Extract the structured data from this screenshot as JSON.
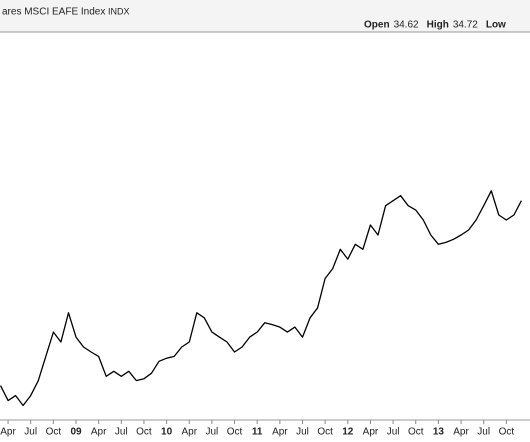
{
  "chart_data": {
    "type": "line",
    "title": "ares MSCI EAFE Index",
    "symbol": "INDX",
    "quote": [
      {
        "label": "Open",
        "value": 34.62
      },
      {
        "label": "High",
        "value": 34.72
      },
      {
        "label": "Low",
        "value": null
      }
    ],
    "categories": [
      null,
      "Apr",
      null,
      null,
      "Jul",
      null,
      null,
      "Oct",
      null,
      null,
      "09",
      null,
      null,
      "Apr",
      null,
      null,
      "Jul",
      null,
      null,
      "Oct",
      null,
      null,
      "10",
      null,
      null,
      "Apr",
      null,
      null,
      "Jul",
      null,
      null,
      "Oct",
      null,
      null,
      "11",
      null,
      null,
      "Apr",
      null,
      null,
      "Jul",
      null,
      null,
      "Oct",
      null,
      null,
      "12",
      null,
      null,
      "Apr",
      null,
      null,
      "Jul",
      null,
      null,
      "Oct",
      null,
      null,
      "13",
      null,
      null,
      "Apr",
      null,
      null,
      "Jul",
      null,
      null,
      "Oct",
      null,
      null
    ],
    "values": [
      35.2,
      32.8,
      33.6,
      32.0,
      33.6,
      36.0,
      39.9,
      43.8,
      42.2,
      46.9,
      43.0,
      41.4,
      40.6,
      39.9,
      36.7,
      37.5,
      36.7,
      37.5,
      36.0,
      36.3,
      37.2,
      39.1,
      39.6,
      39.9,
      41.4,
      42.2,
      46.9,
      46.1,
      43.8,
      43.0,
      42.2,
      40.6,
      41.4,
      43.0,
      43.8,
      45.3,
      45.0,
      44.6,
      43.8,
      44.6,
      43.0,
      46.1,
      47.7,
      52.4,
      54.0,
      57.1,
      55.5,
      57.9,
      57.1,
      61.0,
      59.4,
      64.1,
      64.9,
      65.7,
      64.1,
      63.4,
      61.8,
      59.4,
      57.9,
      58.2,
      58.7,
      59.4,
      60.2,
      61.8,
      64.1,
      66.5,
      62.6,
      61.8,
      62.6,
      64.9
    ],
    "color": "#000000",
    "ylim": [
      30,
      92
    ]
  }
}
